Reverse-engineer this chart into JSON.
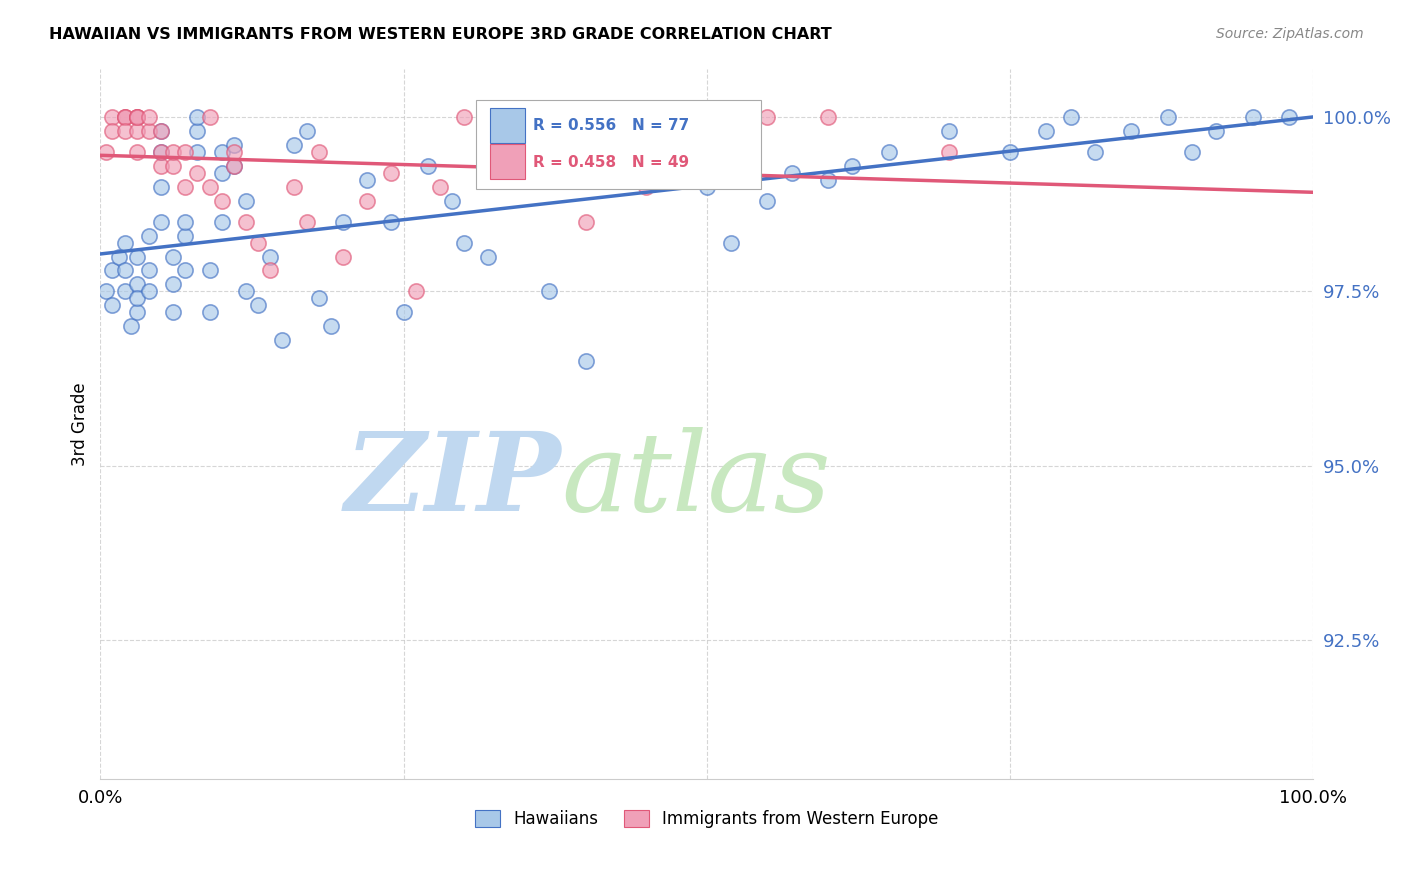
{
  "title": "HAWAIIAN VS IMMIGRANTS FROM WESTERN EUROPE 3RD GRADE CORRELATION CHART",
  "source": "Source: ZipAtlas.com",
  "ylabel": "3rd Grade",
  "xlim": [
    0,
    100
  ],
  "ylim": [
    90.5,
    100.7
  ],
  "yticks": [
    92.5,
    95.0,
    97.5,
    100.0
  ],
  "xticks": [
    0,
    25,
    50,
    75,
    100
  ],
  "xtick_labels": [
    "0.0%",
    "",
    "",
    "",
    "100.0%"
  ],
  "ytick_labels": [
    "92.5%",
    "95.0%",
    "97.5%",
    "100.0%"
  ],
  "hawaiians_R": 0.556,
  "hawaiians_N": 77,
  "immigrants_R": 0.458,
  "immigrants_N": 49,
  "blue_color": "#A8C8E8",
  "pink_color": "#F0A0B8",
  "blue_line_color": "#4472C4",
  "pink_line_color": "#E05878",
  "watermark_zip_color": "#C8DCF0",
  "watermark_atlas_color": "#D0E8C8",
  "hawaiians_x": [
    0.5,
    1,
    1,
    1.5,
    2,
    2,
    2,
    2.5,
    3,
    3,
    3,
    3,
    4,
    4,
    4,
    5,
    5,
    5,
    5,
    6,
    6,
    6,
    7,
    7,
    7,
    8,
    8,
    8,
    9,
    9,
    10,
    10,
    10,
    11,
    11,
    12,
    12,
    13,
    14,
    15,
    16,
    17,
    18,
    19,
    20,
    22,
    24,
    25,
    27,
    29,
    30,
    32,
    35,
    37,
    40,
    42,
    44,
    46,
    48,
    50,
    52,
    55,
    57,
    60,
    62,
    65,
    70,
    75,
    78,
    80,
    82,
    85,
    88,
    90,
    92,
    95,
    98
  ],
  "hawaiians_y": [
    97.5,
    97.8,
    97.3,
    98.0,
    97.5,
    98.2,
    97.8,
    97.0,
    97.6,
    98.0,
    97.2,
    97.4,
    97.8,
    98.3,
    97.5,
    98.5,
    99.0,
    99.5,
    99.8,
    97.2,
    97.6,
    98.0,
    98.3,
    97.8,
    98.5,
    99.5,
    99.8,
    100.0,
    97.2,
    97.8,
    98.5,
    99.2,
    99.5,
    99.3,
    99.6,
    97.5,
    98.8,
    97.3,
    98.0,
    96.8,
    99.6,
    99.8,
    97.4,
    97.0,
    98.5,
    99.1,
    98.5,
    97.2,
    99.3,
    98.8,
    98.2,
    98.0,
    99.5,
    97.5,
    96.5,
    99.3,
    99.8,
    99.5,
    99.2,
    99.0,
    98.2,
    98.8,
    99.2,
    99.1,
    99.3,
    99.5,
    99.8,
    99.5,
    99.8,
    100.0,
    99.5,
    99.8,
    100.0,
    99.5,
    99.8,
    100.0,
    100.0
  ],
  "immigrants_x": [
    0.5,
    1,
    1,
    2,
    2,
    2,
    2,
    3,
    3,
    3,
    3,
    3,
    3,
    4,
    4,
    5,
    5,
    5,
    6,
    6,
    7,
    7,
    8,
    9,
    9,
    10,
    11,
    11,
    12,
    13,
    14,
    16,
    17,
    18,
    20,
    22,
    24,
    26,
    28,
    30,
    32,
    35,
    38,
    40,
    45,
    50,
    55,
    60,
    70
  ],
  "immigrants_y": [
    99.5,
    100.0,
    99.8,
    100.0,
    100.0,
    100.0,
    99.8,
    100.0,
    100.0,
    100.0,
    99.8,
    100.0,
    99.5,
    99.8,
    100.0,
    99.3,
    99.5,
    99.8,
    99.3,
    99.5,
    99.0,
    99.5,
    99.2,
    99.0,
    100.0,
    98.8,
    99.3,
    99.5,
    98.5,
    98.2,
    97.8,
    99.0,
    98.5,
    99.5,
    98.0,
    98.8,
    99.2,
    97.5,
    99.0,
    100.0,
    99.3,
    99.5,
    99.8,
    98.5,
    99.0,
    99.5,
    100.0,
    100.0,
    99.5
  ]
}
